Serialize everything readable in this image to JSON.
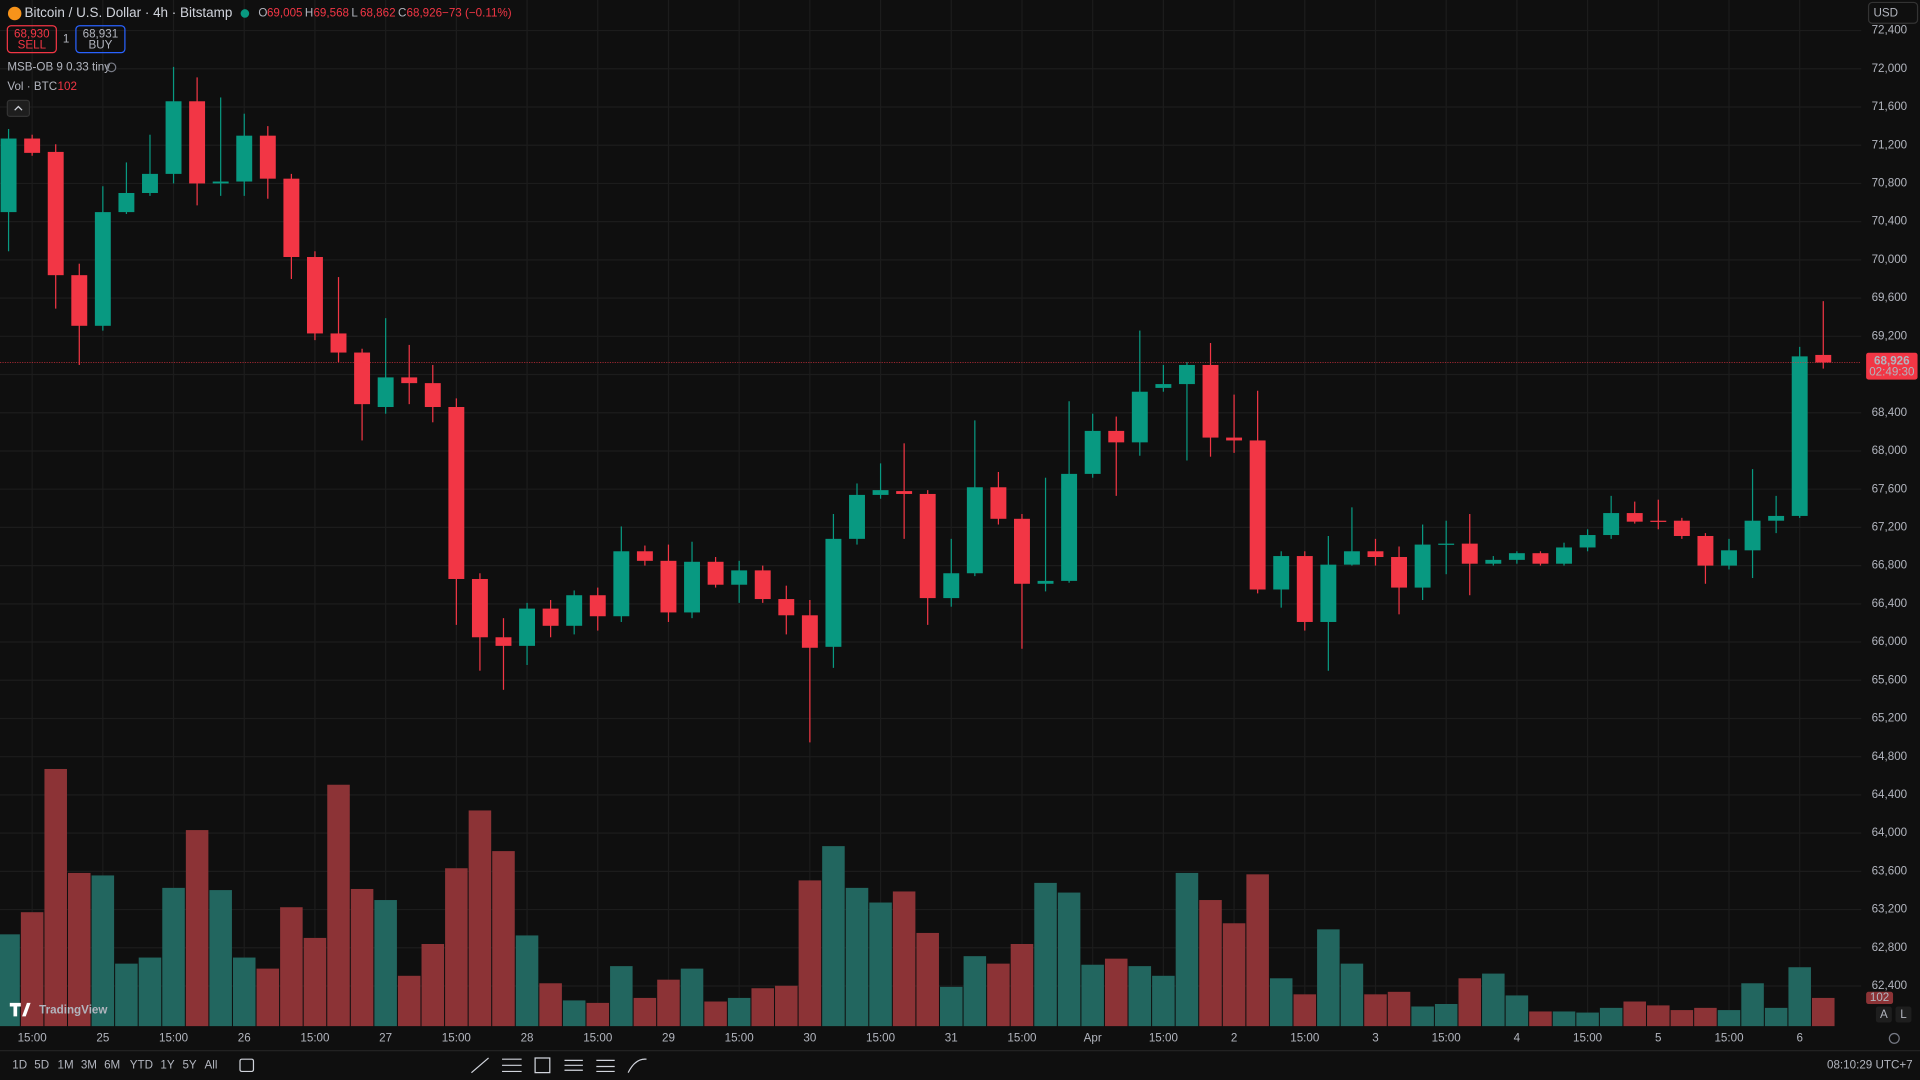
{
  "chart_data": {
    "type": "candlestick",
    "title": "Bitcoin / U.S. Dollar · 4h · Bitstamp",
    "ohlc_legend": [
      {
        "key": "O",
        "value": "69,005"
      },
      {
        "key": "H",
        "value": "69,568"
      },
      {
        "key": "L",
        "value": "68,862"
      },
      {
        "key": "C",
        "value": "68,926"
      }
    ],
    "change": "−73 (−0.11%)",
    "sell_price": "68,930",
    "sell": "SELL",
    "quantity": "1",
    "buy_price": "68,931",
    "buy": "BUY",
    "indicator": "MSB-OB 9 0.33 tiny",
    "volume_title": "Vol · BTC",
    "currency": "USD",
    "price_label": {
      "value": 68926,
      "label": "68,926"
    },
    "countdown": "02:49:30",
    "logo": "TradingView",
    "ranges": [
      "1D",
      "5D",
      "1M",
      "3M",
      "6M",
      "YTD",
      "1Y",
      "5Y",
      "All"
    ],
    "clock": "08:10:29 UTC+7",
    "scale_buttons": [
      "A",
      "L"
    ],
    "up_color": "#089981",
    "down_color": "#f23645",
    "volume_up_color": "#22665f",
    "volume_down_color": "#8c3336",
    "grid": true,
    "ylim": [
      61980,
      72720
    ],
    "yticks": [
      {
        "value": 72400,
        "label": "72,400"
      },
      {
        "value": 72000,
        "label": "72,000"
      },
      {
        "value": 71600,
        "label": "71,600"
      },
      {
        "value": 71200,
        "label": "71,200"
      },
      {
        "value": 70800,
        "label": "70,800"
      },
      {
        "value": 70400,
        "label": "70,400"
      },
      {
        "value": 70000,
        "label": "70,000"
      },
      {
        "value": 69600,
        "label": "69,600"
      },
      {
        "value": 69200,
        "label": "69,200"
      },
      {
        "value": 68800,
        "label": "68,800"
      },
      {
        "value": 68400,
        "label": "68,400"
      },
      {
        "value": 68000,
        "label": "68,000"
      },
      {
        "value": 67600,
        "label": "67,600"
      },
      {
        "value": 67200,
        "label": "67,200"
      },
      {
        "value": 66800,
        "label": "66,800"
      },
      {
        "value": 66400,
        "label": "66,400"
      },
      {
        "value": 66000,
        "label": "66,000"
      },
      {
        "value": 65600,
        "label": "65,600"
      },
      {
        "value": 65200,
        "label": "65,200"
      },
      {
        "value": 64800,
        "label": "64,800"
      },
      {
        "value": 64400,
        "label": "64,400"
      },
      {
        "value": 64000,
        "label": "64,000"
      },
      {
        "value": 63600,
        "label": "63,600"
      },
      {
        "value": 63200,
        "label": "63,200"
      },
      {
        "value": 62800,
        "label": "62,800"
      },
      {
        "value": 62400,
        "label": "62,400"
      }
    ],
    "categories": [
      null,
      "15:00",
      null,
      null,
      "25",
      null,
      null,
      "15:00",
      null,
      null,
      "26",
      null,
      null,
      "15:00",
      null,
      null,
      "27",
      null,
      null,
      "15:00",
      null,
      null,
      "28",
      null,
      null,
      "15:00",
      null,
      null,
      "29",
      null,
      null,
      "15:00",
      null,
      null,
      "30",
      null,
      null,
      "15:00",
      null,
      null,
      "31",
      null,
      null,
      "15:00",
      null,
      null,
      "Apr",
      null,
      null,
      "15:00",
      null,
      null,
      "2",
      null,
      null,
      "15:00",
      null,
      null,
      "3",
      null,
      null,
      "15:00",
      null,
      null,
      "4",
      null,
      null,
      "15:00",
      null,
      null,
      "5",
      null,
      null,
      "15:00",
      null,
      null,
      "6",
      null
    ],
    "open": [
      70500,
      71270,
      71130,
      69840,
      69310,
      70500,
      70700,
      70900,
      71660,
      70800,
      70820,
      71300,
      70850,
      70030,
      69230,
      69030,
      68460,
      68770,
      68710,
      68460,
      66660,
      66050,
      65960,
      66350,
      66170,
      66490,
      66270,
      66950,
      66850,
      66310,
      66840,
      66600,
      66750,
      66450,
      66280,
      65950,
      67080,
      67540,
      67580,
      67550,
      66460,
      66720,
      67620,
      67290,
      66610,
      66640,
      67760,
      68210,
      68090,
      68660,
      68700,
      68900,
      68140,
      68110,
      66550,
      66900,
      66210,
      66810,
      66950,
      66890,
      66570,
      67020,
      67030,
      66820,
      66860,
      66930,
      66820,
      66990,
      67120,
      67350,
      67270,
      67270,
      67110,
      66800,
      66960,
      67270,
      67320,
      69005
    ],
    "high": [
      71370,
      71310,
      71210,
      69960,
      70770,
      71020,
      71310,
      72020,
      71910,
      71700,
      71530,
      71400,
      70900,
      70090,
      69820,
      69070,
      69390,
      69110,
      68900,
      68550,
      66720,
      66250,
      66410,
      66440,
      66540,
      66570,
      67210,
      67010,
      67020,
      67050,
      66890,
      66850,
      66800,
      66590,
      66440,
      67340,
      67660,
      67870,
      68080,
      67590,
      67080,
      68320,
      67780,
      67340,
      67720,
      68520,
      68390,
      68360,
      69260,
      68900,
      68930,
      69130,
      68590,
      68630,
      66950,
      66950,
      67110,
      67410,
      67080,
      67000,
      67230,
      67270,
      67340,
      66900,
      66950,
      66950,
      67040,
      67180,
      67530,
      67470,
      67490,
      67300,
      67140,
      67080,
      67810,
      67530,
      69090,
      69568
    ],
    "low": [
      70090,
      71090,
      69490,
      68900,
      69260,
      70480,
      70670,
      70800,
      70570,
      70670,
      70670,
      70640,
      69800,
      69160,
      68930,
      68110,
      68390,
      68490,
      68300,
      66180,
      65700,
      65500,
      65760,
      66050,
      66080,
      66120,
      66210,
      66800,
      66210,
      66250,
      66570,
      66410,
      66410,
      66080,
      64950,
      65730,
      67020,
      67500,
      67080,
      66180,
      66370,
      66690,
      67230,
      65930,
      66530,
      66620,
      67720,
      67530,
      67950,
      68620,
      67900,
      67940,
      67980,
      66510,
      66360,
      66120,
      65700,
      66800,
      66800,
      66290,
      66440,
      66710,
      66490,
      66800,
      66820,
      66800,
      66800,
      66950,
      67080,
      67240,
      67180,
      67080,
      66610,
      66760,
      66670,
      67140,
      67300,
      68862
    ],
    "close": [
      71270,
      71120,
      69840,
      69310,
      70500,
      70700,
      70900,
      71660,
      70800,
      70820,
      71300,
      70850,
      70030,
      69230,
      69030,
      68490,
      68770,
      68710,
      68460,
      66660,
      66050,
      65960,
      66350,
      66170,
      66490,
      66270,
      66950,
      66850,
      66310,
      66840,
      66600,
      66750,
      66450,
      66280,
      65940,
      67080,
      67540,
      67590,
      67550,
      66460,
      66720,
      67620,
      67290,
      66610,
      66640,
      67760,
      68210,
      68090,
      68620,
      68700,
      68900,
      68140,
      68110,
      66550,
      66900,
      66210,
      66810,
      66950,
      66890,
      66570,
      67020,
      67030,
      66820,
      66860,
      66930,
      66820,
      66990,
      67120,
      67350,
      67260,
      67260,
      67110,
      66800,
      66960,
      67270,
      67320,
      68990,
      68926
    ],
    "volume": [
      332,
      412,
      930,
      554,
      545,
      226,
      248,
      500,
      709,
      492,
      248,
      208,
      430,
      319,
      873,
      496,
      456,
      182,
      297,
      571,
      780,
      633,
      328,
      155,
      93,
      84,
      217,
      102,
      168,
      208,
      89,
      102,
      137,
      146,
      527,
      651,
      500,
      447,
      487,
      337,
      142,
      253,
      226,
      297,
      518,
      483,
      222,
      244,
      217,
      182,
      554,
      456,
      372,
      549,
      173,
      115,
      350,
      226,
      115,
      124,
      71,
      80,
      173,
      190,
      111,
      53,
      53,
      49,
      66,
      89,
      75,
      58,
      66,
      58,
      155,
      66,
      213,
      102
    ]
  }
}
